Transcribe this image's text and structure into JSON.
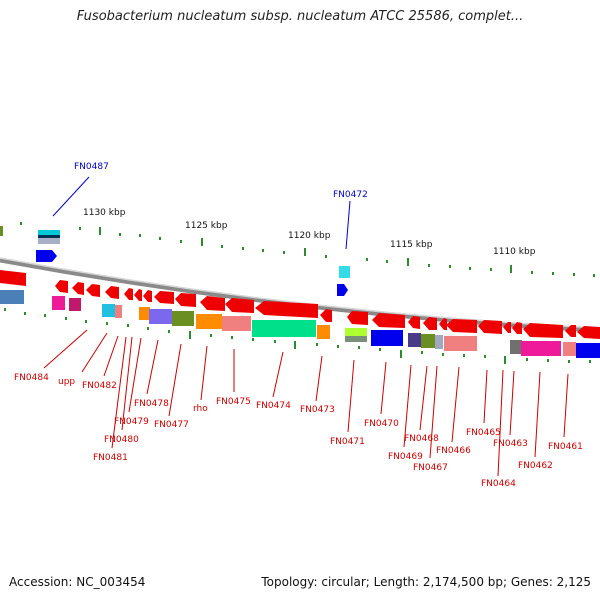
{
  "header": {
    "title": "Fusobacterium nucleatum subsp. nucleatum ATCC 25586, complet..."
  },
  "footer": {
    "accession": "Accession: NC_003454",
    "topology": "Topology: circular; Length: 2,174,500 bp; Genes: 2,125"
  },
  "scale_labels": [
    "1130 kbp",
    "1125 kbp",
    "1120 kbp",
    "1115 kbp",
    "1110 kbp"
  ],
  "top_gene_labels": [
    "FN0487",
    "FN0472"
  ],
  "bottom_gene_labels": [
    "FN0484",
    "upp",
    "FN0482",
    "FN0481",
    "FN0480",
    "FN0479",
    "FN0478",
    "FN0477",
    "rho",
    "FN0475",
    "FN0474",
    "FN0473",
    "FN0471",
    "FN0470",
    "FN0469",
    "FN0468",
    "FN0467",
    "FN0466",
    "FN0465",
    "FN0464",
    "FN0463",
    "FN0462",
    "FN0461"
  ],
  "colors": {
    "forward": "#0000ee",
    "reverse": "#dd0000",
    "tick": "#2e8b2e",
    "backbone": "#888888"
  }
}
